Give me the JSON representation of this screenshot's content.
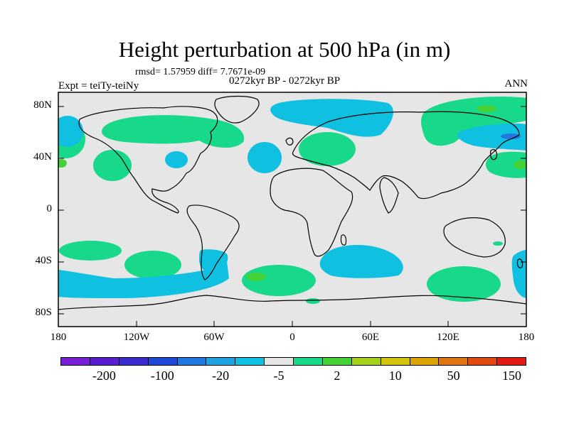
{
  "title": "Height perturbation at 500 hPa (in m)",
  "stats": "rmsd= 1.57959 diff= 7.7671e-09",
  "period": "0272kyr BP - 0272kyr BP",
  "experiment": "Expt = teiTy-teiNy",
  "season": "ANN",
  "lat_labels": [
    "80N",
    "40N",
    "0",
    "40S",
    "80S"
  ],
  "lon_labels": [
    "180",
    "120W",
    "60W",
    "0",
    "60E",
    "120E",
    "180"
  ],
  "colorbar": {
    "colors": [
      "#7a1fd6",
      "#5a1cd0",
      "#3a2ccf",
      "#1f48d8",
      "#2277e0",
      "#1ea3e0",
      "#10c0e0",
      "#e6e6e6",
      "#18d88a",
      "#44d236",
      "#a4d21a",
      "#d2c40c",
      "#dca400",
      "#e07410",
      "#e04a10",
      "#e01a10"
    ],
    "labels": [
      "-200",
      "-100",
      "-20",
      "-5",
      "2",
      "10",
      "50",
      "150"
    ]
  },
  "chart_data": {
    "type": "map",
    "projection": "cylindrical equidistant",
    "lon_range": [
      -180,
      180
    ],
    "lat_range": [
      -90,
      90
    ],
    "field": "500 hPa height perturbation (m)",
    "regions": [
      {
        "lon": -158,
        "lat": 36,
        "level": 2
      },
      {
        "lon": -152,
        "lat": 63,
        "level": -5
      },
      {
        "lon": -110,
        "lat": 63,
        "level": 2
      },
      {
        "lon": -78,
        "lat": 62,
        "level": 2
      },
      {
        "lon": -78,
        "lat": 41,
        "level": -5
      },
      {
        "lon": -20,
        "lat": 41,
        "level": -5
      },
      {
        "lon": 10,
        "lat": 49,
        "level": 2
      },
      {
        "lon": 40,
        "lat": 83,
        "level": -5
      },
      {
        "lon": 40,
        "lat": 60,
        "level": -5
      },
      {
        "lon": 130,
        "lat": 77,
        "level": 2
      },
      {
        "lon": 150,
        "lat": 55,
        "level": -5
      },
      {
        "lon": 150,
        "lat": 36,
        "level": 2
      },
      {
        "lon": -148,
        "lat": -30,
        "level": 2
      },
      {
        "lon": -110,
        "lat": -35,
        "level": 2
      },
      {
        "lon": -120,
        "lat": -60,
        "level": -5
      },
      {
        "lon": -62,
        "lat": -52,
        "level": -5
      },
      {
        "lon": -12,
        "lat": -58,
        "level": 2
      },
      {
        "lon": -12,
        "lat": -52,
        "level": 10
      },
      {
        "lon": 52,
        "lat": -44,
        "level": -5
      },
      {
        "lon": 130,
        "lat": -61,
        "level": 2
      },
      {
        "lon": 170,
        "lat": -54,
        "level": -5
      }
    ]
  }
}
